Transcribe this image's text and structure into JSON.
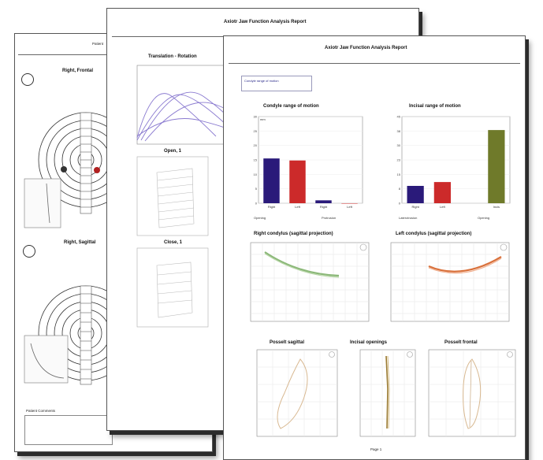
{
  "report": {
    "title": "Axiotr Jaw Function Analysis Report",
    "page_number": "Page 1"
  },
  "page_back": {
    "header_text": "Patient",
    "sections": [
      "Right, Frontal",
      "Right, Sagittal"
    ],
    "comments_label": "Patient Comments"
  },
  "page_middle": {
    "chart_title": "Translation - Rotation",
    "panels": [
      "Open, 1",
      "Close, 1"
    ]
  },
  "page_front": {
    "legend_text": "Condyle range of motion",
    "charts": {
      "condyle_range": {
        "title": "Condyle range of motion",
        "ylabel": "mm",
        "categories": [
          "Right",
          "Left",
          "Right",
          "Left"
        ],
        "groups": [
          "Opening",
          "Protrusion"
        ]
      },
      "incisal_range": {
        "title": "Incisal range of motion",
        "categories": [
          "Right",
          "Left",
          "Incis"
        ],
        "groups": [
          "Laterotrusion",
          "Opening"
        ]
      },
      "right_condyle": {
        "title": "Right condylus (sagittal projection)"
      },
      "left_condyle": {
        "title": "Left condylus (sagittal projection)"
      },
      "posselt_sagittal": {
        "title": "Posselt sagittal"
      },
      "incisal_openings": {
        "title": "Incisal openings"
      },
      "posselt_frontal": {
        "title": "Posselt frontal"
      }
    }
  },
  "colors": {
    "navy": "#2a1a7a",
    "red": "#cc2a2a",
    "olive": "#6f7a2a",
    "green_trace": "#8bb878",
    "orange_trace": "#d9703a",
    "purple_trace": "#8a7ad0"
  },
  "chart_data": [
    {
      "type": "bar",
      "title": "Condyle range of motion",
      "categories": [
        "Right",
        "Left",
        "Right",
        "Left"
      ],
      "values": [
        15.5,
        14.8,
        1,
        0
      ],
      "colors": [
        "#2a1a7a",
        "#cc2a2a",
        "#2a1a7a",
        "#cc2a2a"
      ],
      "ylim": [
        0,
        30
      ],
      "ylabel": "mm"
    },
    {
      "type": "bar",
      "title": "Incisal range of motion",
      "categories": [
        "Right",
        "Left",
        "Incis"
      ],
      "values": [
        9,
        11,
        38
      ],
      "colors": [
        "#2a1a7a",
        "#cc2a2a",
        "#6f7a2a"
      ],
      "ylim": [
        0,
        45
      ]
    }
  ]
}
